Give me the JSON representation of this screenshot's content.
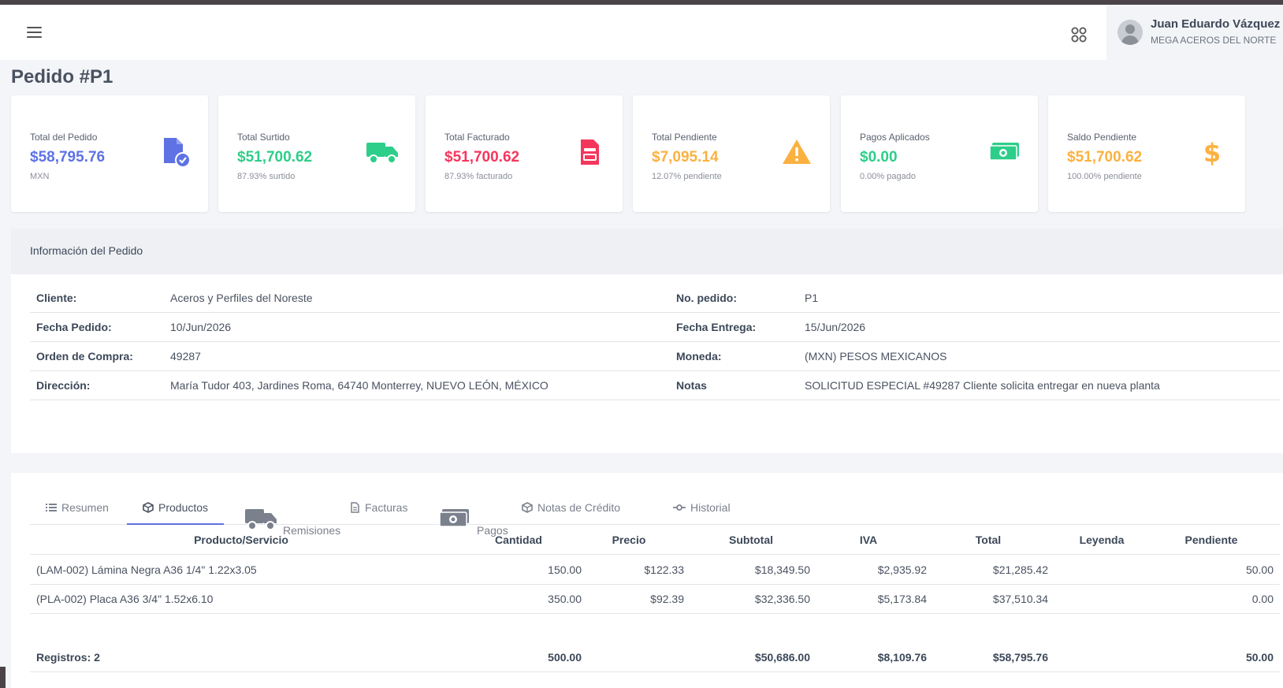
{
  "header": {
    "user_name": "Juan Eduardo Vázquez",
    "company": "MEGA ACEROS DEL NORTE"
  },
  "page_title": "Pedido #P1",
  "cards": [
    {
      "label": "Total del Pedido",
      "value": "$58,795.76",
      "sub": "MXN",
      "color": "#5e72e4",
      "icon": "document-check-icon"
    },
    {
      "label": "Total Surtido",
      "value": "$51,700.62",
      "sub": "87.93% surtido",
      "color": "#2dce89",
      "icon": "truck-icon"
    },
    {
      "label": "Total Facturado",
      "value": "$51,700.62",
      "sub": "87.93% facturado",
      "color": "#f5365c",
      "icon": "invoice-icon"
    },
    {
      "label": "Total Pendiente",
      "value": "$7,095.14",
      "sub": "12.07% pendiente",
      "color": "#fbb140",
      "icon": "warning-icon"
    },
    {
      "label": "Pagos Aplicados",
      "value": "$0.00",
      "sub": "0.00% pagado",
      "color": "#2dce89",
      "icon": "money-icon"
    },
    {
      "label": "Saldo Pendiente",
      "value": "$51,700.62",
      "sub": "100.00% pendiente",
      "color": "#fbb140",
      "icon": "dollar-icon"
    }
  ],
  "info": {
    "title": "Información del Pedido",
    "rows": [
      {
        "l1": "Cliente:",
        "v1": "Aceros y Perfiles del Noreste",
        "l2": "No. pedido:",
        "v2": "P1"
      },
      {
        "l1": "Fecha Pedido:",
        "v1": "10/Jun/2026",
        "l2": "Fecha Entrega:",
        "v2": "15/Jun/2026"
      },
      {
        "l1": "Orden de Compra:",
        "v1": "49287",
        "l2": "Moneda:",
        "v2": "(MXN) PESOS MEXICANOS"
      },
      {
        "l1": "Dirección:",
        "v1": "María Tudor 403, Jardines Roma, 64740 Monterrey, NUEVO LEÓN, MÉXICO",
        "l2": "Notas",
        "v2": "SOLICITUD ESPECIAL #49287 Cliente solicita entregar en nueva planta"
      }
    ]
  },
  "tabs": [
    {
      "label": "Resumen",
      "icon": "list-icon"
    },
    {
      "label": "Productos",
      "icon": "box-icon"
    },
    {
      "label": "Remisiones",
      "icon": "truck-icon"
    },
    {
      "label": "Facturas",
      "icon": "file-icon"
    },
    {
      "label": "Pagos",
      "icon": "money-icon"
    },
    {
      "label": "Notas de Crédito",
      "icon": "box-icon"
    },
    {
      "label": "Historial",
      "icon": "commit-icon"
    }
  ],
  "active_tab": "Productos",
  "table": {
    "headers": [
      "Producto/Servicio",
      "Cantidad",
      "Precio",
      "Subtotal",
      "IVA",
      "Total",
      "Leyenda",
      "Pendiente"
    ],
    "rows": [
      [
        "(LAM-002) Lámina Negra A36 1/4\" 1.22x3.05",
        "150.00",
        "$122.33",
        "$18,349.50",
        "$2,935.92",
        "$21,285.42",
        "",
        "50.00"
      ],
      [
        "(PLA-002) Placa A36 3/4\" 1.52x6.10",
        "350.00",
        "$92.39",
        "$32,336.50",
        "$5,173.84",
        "$37,510.34",
        "",
        "0.00"
      ]
    ],
    "footer": [
      "Registros: 2",
      "500.00",
      "",
      "$50,686.00",
      "$8,109.76",
      "$58,795.76",
      "",
      "50.00"
    ]
  }
}
